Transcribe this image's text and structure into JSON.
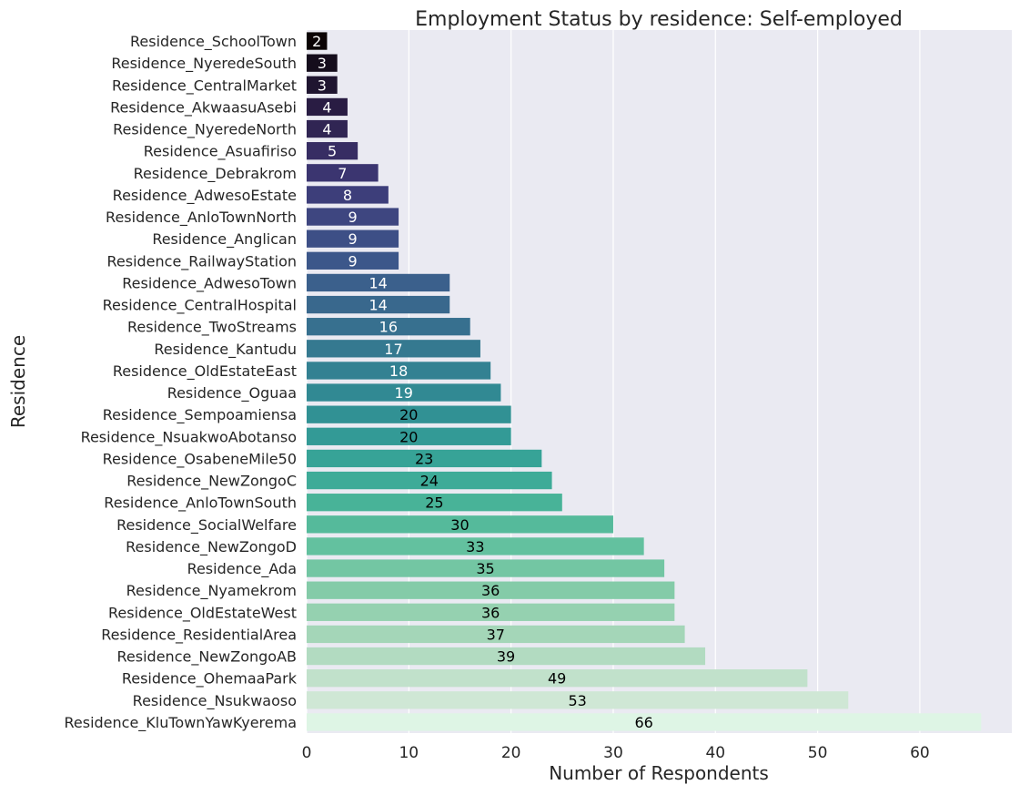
{
  "chart_data": {
    "type": "bar",
    "orientation": "horizontal",
    "title": "Employment Status by residence:  Self-employed",
    "xlabel": "Number of Respondents",
    "ylabel": "Residence",
    "xlim": [
      0,
      69
    ],
    "xticks": [
      0,
      10,
      20,
      30,
      40,
      50,
      60
    ],
    "grid": true,
    "legend": "none",
    "background_color": "#EAEAF2",
    "palette": "mako",
    "categories": [
      "Residence_SchoolTown",
      "Residence_NyeredeSouth",
      "Residence_CentralMarket",
      "Residence_AkwaasuAsebi",
      "Residence_NyeredeNorth",
      "Residence_Asuafiriso",
      "Residence_Debrakrom",
      "Residence_AdwesoEstate",
      "Residence_AnloTownNorth",
      "Residence_Anglican",
      "Residence_RailwayStation",
      "Residence_AdwesoTown",
      "Residence_CentralHospital",
      "Residence_TwoStreams",
      "Residence_Kantudu",
      "Residence_OldEstateEast",
      "Residence_Oguaa",
      "Residence_Sempoamiensa",
      "Residence_NsuakwoAbotanso",
      "Residence_OsabeneMile50",
      "Residence_NewZongoC",
      "Residence_AnloTownSouth",
      "Residence_SocialWelfare",
      "Residence_NewZongoD",
      "Residence_Ada",
      "Residence_Nyamekrom",
      "Residence_OldEstateWest",
      "Residence_ResidentialArea",
      "Residence_NewZongoAB",
      "Residence_OhemaaPark",
      "Residence_Nsukwaoso",
      "Residence_KluTownYawKyerema"
    ],
    "values": [
      2,
      3,
      3,
      4,
      4,
      5,
      7,
      8,
      9,
      9,
      9,
      14,
      14,
      16,
      17,
      18,
      19,
      20,
      20,
      23,
      24,
      25,
      30,
      33,
      35,
      36,
      36,
      37,
      39,
      49,
      53,
      66
    ],
    "colors": [
      "#0b0405",
      "#150d1c",
      "#1f1530",
      "#291c43",
      "#302553",
      "#372d63",
      "#3b3570",
      "#3d3e7a",
      "#3e4680",
      "#3d4f86",
      "#3c578a",
      "#3b608c",
      "#39688d",
      "#37708f",
      "#357990",
      "#338192",
      "#318993",
      "#319194",
      "#339a96",
      "#37a397",
      "#3eab98",
      "#48b398",
      "#55ba9b",
      "#63c19f",
      "#73c6a3",
      "#84cba8",
      "#95d1b0",
      "#a4d6b8",
      "#b2dbc1",
      "#c1e1cb",
      "#cfe7d5",
      "#def5e5"
    ]
  }
}
